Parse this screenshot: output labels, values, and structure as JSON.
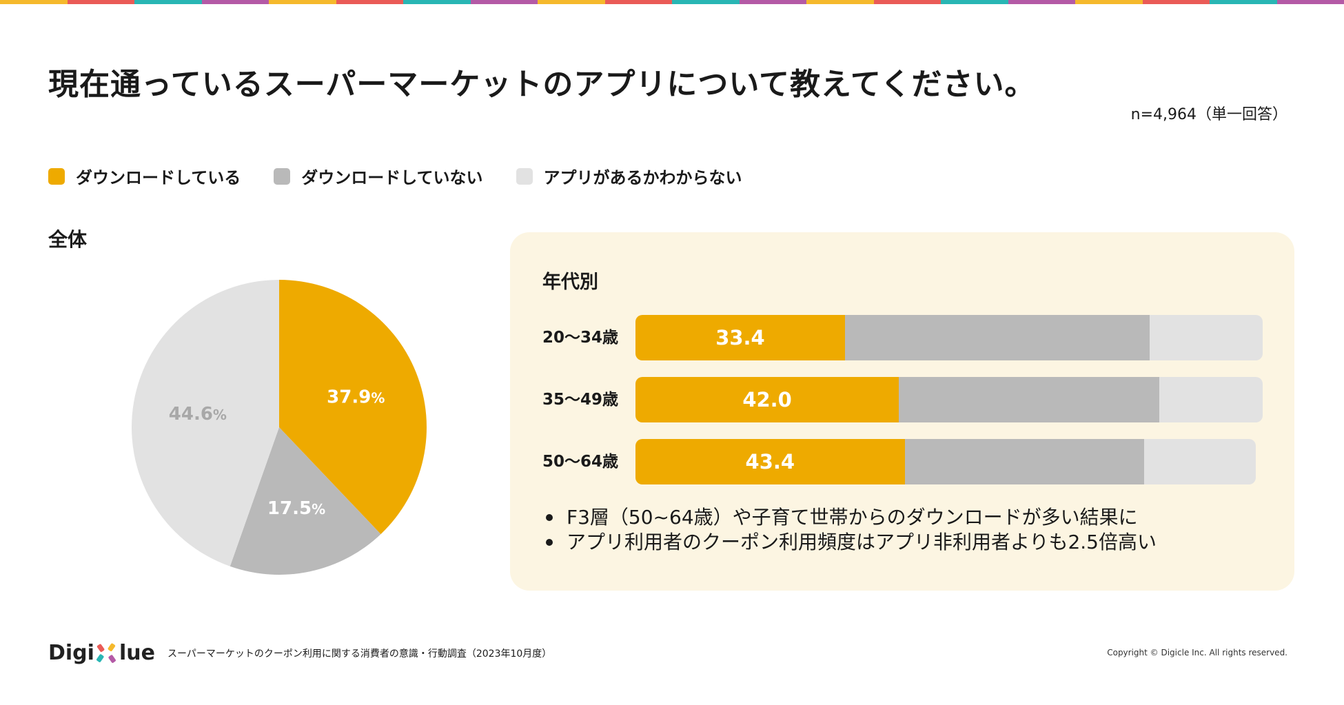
{
  "header": {
    "title": "現在通っているスーパーマーケットのアプリについて教えてください。",
    "sample": "n=4,964（単一回答）"
  },
  "colors": {
    "downloaded": "#eeaa00",
    "not_downloaded": "#b9b9b9",
    "unknown": "#e2e2e2",
    "panel_bg": "#fcf5e2",
    "stripes": [
      "#f5b92c",
      "#ea5b57",
      "#29b6b4",
      "#b45aa6"
    ]
  },
  "legend": [
    {
      "label": "ダウンロードしている",
      "color": "#eeaa00"
    },
    {
      "label": "ダウンロードしていない",
      "color": "#b9b9b9"
    },
    {
      "label": "アプリがあるかわからない",
      "color": "#e2e2e2"
    }
  ],
  "chart_data": [
    {
      "type": "pie",
      "title": "全体",
      "labels": [
        "ダウンロードしている",
        "ダウンロードしていない",
        "アプリがあるかわからない"
      ],
      "values": [
        37.9,
        17.5,
        44.6
      ],
      "value_labels": [
        "37.9",
        "17.5",
        "44.6"
      ],
      "unit": "%",
      "start": "12 o'clock, clockwise"
    },
    {
      "type": "bar",
      "orientation": "horizontal",
      "stacked": true,
      "title": "年代別",
      "categories": [
        "20〜34歳",
        "35〜49歳",
        "50〜64歳"
      ],
      "series": [
        {
          "name": "ダウンロードしている",
          "values": [
            33.4,
            42.0,
            43.4
          ],
          "labels": [
            "33.4",
            "42.0",
            "43.4"
          ]
        },
        {
          "name": "ダウンロードしていない",
          "values": [
            48.6,
            41.5,
            38.6
          ]
        },
        {
          "name": "アプリがあるかわからない",
          "values": [
            18.0,
            16.5,
            18.0
          ]
        }
      ],
      "xlim": [
        0,
        100
      ]
    }
  ],
  "notes": [
    "F3層（50~64歳）や子育て世帯からのダウンロードが多い結果に",
    "アプリ利用者のクーポン利用頻度はアプリ非利用者よりも2.5倍高い"
  ],
  "footer": {
    "logo_left": "Digi",
    "logo_right": "lue",
    "source": "スーパーマーケットのクーポン利用に関する消費者の意識・行動調査（2023年10月度）",
    "copyright": "Copyright © Digicle Inc. All rights reserved."
  }
}
